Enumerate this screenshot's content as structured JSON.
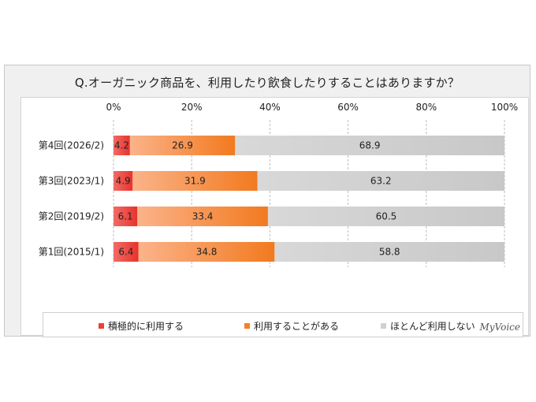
{
  "title": "Q.オーガニック商品を、利用したり飲食したりすることはありますか？",
  "brand": "MyVoice",
  "colors": {
    "active": "#ee4035",
    "sometimes": "#f57f27",
    "rarely": "#d0d0d0"
  },
  "chart_data": {
    "type": "bar",
    "orientation": "horizontal",
    "stacked": true,
    "percent": true,
    "categories": [
      "第4回(2026/2)",
      "第3回(2023/1)",
      "第2回(2019/2)",
      "第1回(2015/1)"
    ],
    "series": [
      {
        "name": "積極的に利用する",
        "values": [
          4.2,
          4.9,
          6.1,
          6.4
        ]
      },
      {
        "name": "利用することがある",
        "values": [
          26.9,
          31.9,
          33.4,
          34.8
        ]
      },
      {
        "name": "ほとんど利用しない",
        "values": [
          68.9,
          63.2,
          60.5,
          58.8
        ]
      }
    ],
    "xticks": [
      "0%",
      "20%",
      "40%",
      "60%",
      "80%",
      "100%"
    ],
    "xlim": [
      0,
      100
    ],
    "grid": true,
    "legend_position": "bottom"
  }
}
